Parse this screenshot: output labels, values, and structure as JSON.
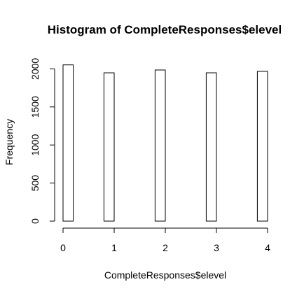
{
  "chart_data": {
    "type": "bar",
    "title": "Histogram of CompleteResponses$elevel",
    "xlabel": "CompleteResponses$elevel",
    "ylabel": "Frequency",
    "bin_width": 0.2,
    "bins": [
      {
        "start": 0.0,
        "end": 0.2,
        "count": 2052
      },
      {
        "start": 0.2,
        "end": 0.4,
        "count": 0
      },
      {
        "start": 0.4,
        "end": 0.6,
        "count": 0
      },
      {
        "start": 0.6,
        "end": 0.8,
        "count": 0
      },
      {
        "start": 0.8,
        "end": 1.0,
        "count": 1948
      },
      {
        "start": 1.0,
        "end": 1.2,
        "count": 0
      },
      {
        "start": 1.2,
        "end": 1.4,
        "count": 0
      },
      {
        "start": 1.4,
        "end": 1.6,
        "count": 0
      },
      {
        "start": 1.6,
        "end": 1.8,
        "count": 0
      },
      {
        "start": 1.8,
        "end": 2.0,
        "count": 1985
      },
      {
        "start": 2.0,
        "end": 2.2,
        "count": 0
      },
      {
        "start": 2.2,
        "end": 2.4,
        "count": 0
      },
      {
        "start": 2.4,
        "end": 2.6,
        "count": 0
      },
      {
        "start": 2.6,
        "end": 2.8,
        "count": 0
      },
      {
        "start": 2.8,
        "end": 3.0,
        "count": 1948
      },
      {
        "start": 3.0,
        "end": 3.2,
        "count": 0
      },
      {
        "start": 3.2,
        "end": 3.4,
        "count": 0
      },
      {
        "start": 3.4,
        "end": 3.6,
        "count": 0
      },
      {
        "start": 3.6,
        "end": 3.8,
        "count": 0
      },
      {
        "start": 3.8,
        "end": 4.0,
        "count": 1967
      }
    ],
    "xlim": [
      0,
      4
    ],
    "ylim": [
      0,
      2100
    ],
    "x_ticks": [
      0,
      1,
      2,
      3,
      4
    ],
    "x_tick_labels": [
      "0",
      "1",
      "2",
      "3",
      "4"
    ],
    "y_ticks": [
      0,
      500,
      1000,
      1500,
      2000
    ],
    "y_tick_labels": [
      "0",
      "500",
      "1000",
      "1500",
      "2000"
    ],
    "grid": false,
    "legend": "none"
  }
}
